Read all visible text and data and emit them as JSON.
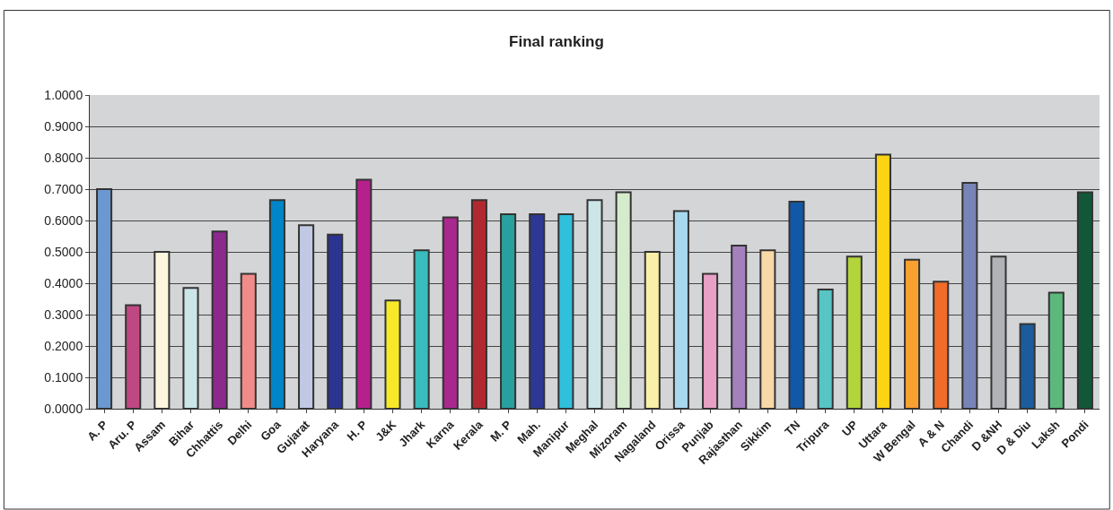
{
  "chart_data": {
    "type": "bar",
    "title": "Final ranking",
    "categories": [
      "A. P",
      "Aru. P",
      "Assam",
      "Bihar",
      "Chhattis",
      "Delhi",
      "Goa",
      "Gujarat",
      "Haryana",
      "H. P",
      "J&K",
      "Jhark",
      "Karna",
      "Kerala",
      "M. P",
      "Mah.",
      "Manipur",
      "Meghal",
      "Mizoram",
      "Nagaland",
      "Orissa",
      "Punjab",
      "Rajasthan",
      "Sikkim",
      "TN",
      "Tripura",
      "UP",
      "Uttara",
      "W Bengal",
      "A & N",
      "Chandi",
      "D &NH",
      "D & Diu",
      "Laksh",
      "Pondi"
    ],
    "values": [
      0.7,
      0.33,
      0.5,
      0.385,
      0.565,
      0.43,
      0.665,
      0.585,
      0.555,
      0.73,
      0.345,
      0.505,
      0.61,
      0.665,
      0.62,
      0.62,
      0.62,
      0.665,
      0.69,
      0.5,
      0.63,
      0.43,
      0.52,
      0.505,
      0.66,
      0.38,
      0.485,
      0.81,
      0.475,
      0.405,
      0.72,
      0.485,
      0.27,
      0.37,
      0.69
    ],
    "colors": [
      "#6b98d0",
      "#c04882",
      "#fcf6de",
      "#cce6e8",
      "#8b2a8c",
      "#f08c88",
      "#0085c8",
      "#c0c8e4",
      "#2b3490",
      "#b5208c",
      "#f8e82a",
      "#38bcbe",
      "#a8288e",
      "#b22830",
      "#28a09e",
      "#2c3894",
      "#30c0dc",
      "#cce6e8",
      "#d4eccc",
      "#f8f0a8",
      "#a8d8ee",
      "#e8a0c4",
      "#a480bc",
      "#f8d8a8",
      "#1258a8",
      "#58c4c4",
      "#b4d43c",
      "#fcd414",
      "#f8a030",
      "#f06c28",
      "#7884b8",
      "#b0b2b6",
      "#1c5c9c",
      "#5cb87c",
      "#125838"
    ],
    "ylim": [
      0,
      1.0
    ],
    "yticks": [
      {
        "value": 0,
        "label": "0.0000"
      },
      {
        "value": 0.1,
        "label": "0.1000"
      },
      {
        "value": 0.2,
        "label": "0.2000"
      },
      {
        "value": 0.3,
        "label": "0.3000"
      },
      {
        "value": 0.4,
        "label": "0.4000"
      },
      {
        "value": 0.5,
        "label": "0.5000"
      },
      {
        "value": 0.6,
        "label": "0.6000"
      },
      {
        "value": 0.7,
        "label": "0.7000"
      },
      {
        "value": 0.8,
        "label": "0.8000"
      },
      {
        "value": 0.9,
        "label": "0.9000"
      },
      {
        "value": 1.0,
        "label": "1.0000"
      }
    ],
    "grid": "y"
  }
}
